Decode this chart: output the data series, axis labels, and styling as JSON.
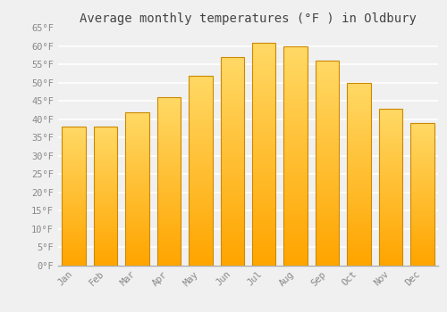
{
  "months": [
    "Jan",
    "Feb",
    "Mar",
    "Apr",
    "May",
    "Jun",
    "Jul",
    "Aug",
    "Sep",
    "Oct",
    "Nov",
    "Dec"
  ],
  "temperatures": [
    38,
    38,
    42,
    46,
    52,
    57,
    61,
    60,
    56,
    50,
    43,
    39
  ],
  "bar_color_top": "#FFD966",
  "bar_color_bottom": "#FFA500",
  "bar_edge_color": "#CC8800",
  "title": "Average monthly temperatures (°F ) in Oldbury",
  "ylim": [
    0,
    65
  ],
  "yticks": [
    0,
    5,
    10,
    15,
    20,
    25,
    30,
    35,
    40,
    45,
    50,
    55,
    60,
    65
  ],
  "ytick_labels": [
    "0°F",
    "5°F",
    "10°F",
    "15°F",
    "20°F",
    "25°F",
    "30°F",
    "35°F",
    "40°F",
    "45°F",
    "50°F",
    "55°F",
    "60°F",
    "65°F"
  ],
  "background_color": "#f0f0f0",
  "grid_color": "#ffffff",
  "title_fontsize": 10,
  "tick_fontsize": 7.5,
  "font_family": "monospace",
  "bar_width": 0.75
}
